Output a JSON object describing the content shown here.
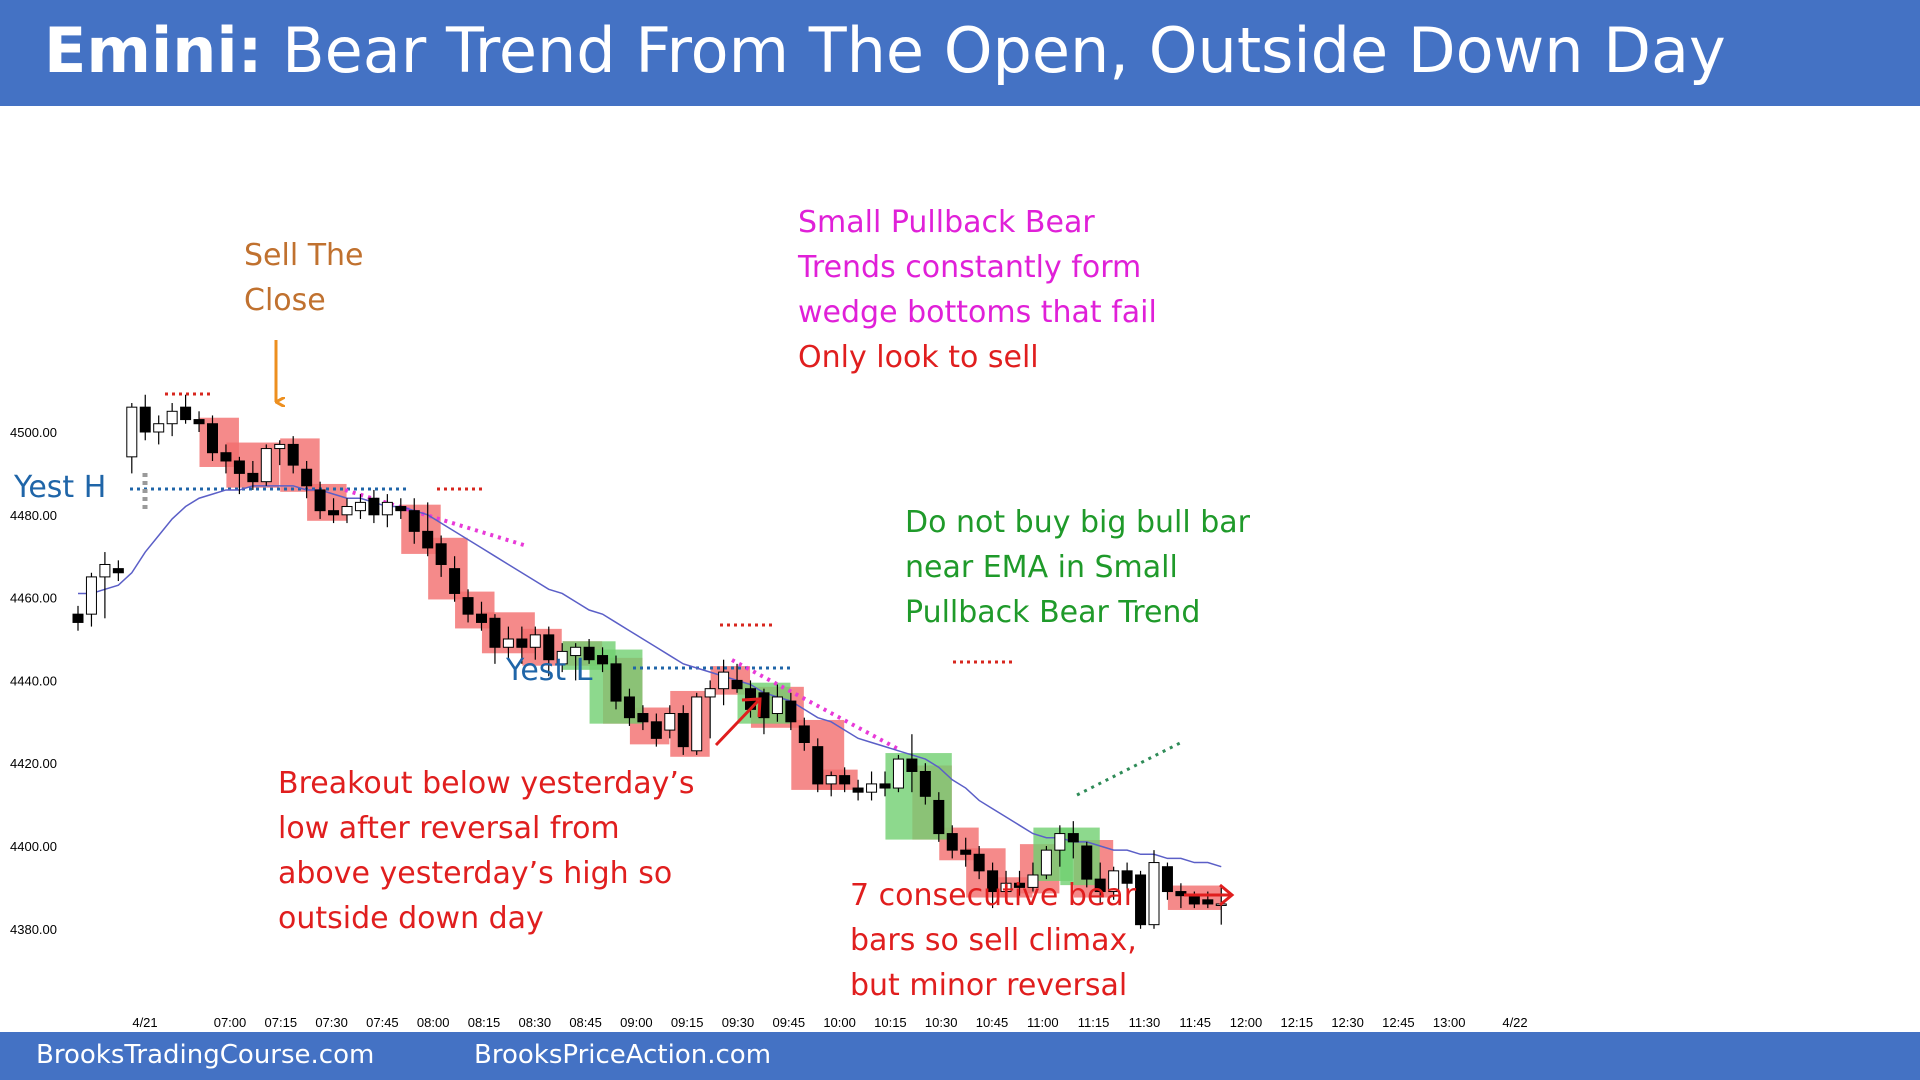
{
  "title": {
    "bold": "Emini:",
    "rest": " Bear Trend From The Open, Outside Down Day"
  },
  "footer": {
    "left": "BrooksTradingCourse.com",
    "right": "BrooksPriceAction.com"
  },
  "colors": {
    "banner": "#4472c4",
    "bear_highlight": "#f26d6d",
    "bull_highlight": "#70d070",
    "ema": "#5b5fc7"
  },
  "chart_data": {
    "type": "candlestick",
    "ylim": [
      4375,
      4510
    ],
    "y_ticks": [
      "4500.00",
      "4480.00",
      "4460.00",
      "4440.00",
      "4420.00",
      "4400.00",
      "4380.00"
    ],
    "y_tick_values": [
      4500,
      4480,
      4460,
      4440,
      4420,
      4400,
      4380
    ],
    "x_ticks": [
      "4/21",
      "07:00",
      "07:15",
      "07:30",
      "07:45",
      "08:00",
      "08:15",
      "08:30",
      "08:45",
      "09:00",
      "09:15",
      "09:30",
      "09:45",
      "10:00",
      "10:15",
      "10:30",
      "10:45",
      "11:00",
      "11:15",
      "11:30",
      "11:45",
      "12:00",
      "12:15",
      "12:30",
      "12:45",
      "13:00",
      "4/22"
    ],
    "candles": [
      {
        "o": 4456,
        "h": 4458,
        "l": 4452,
        "c": 4454
      },
      {
        "o": 4456,
        "h": 4466,
        "l": 4453,
        "c": 4465
      },
      {
        "o": 4465,
        "h": 4471,
        "l": 4455,
        "c": 4468
      },
      {
        "o": 4467,
        "h": 4469,
        "l": 4464,
        "c": 4466
      },
      {
        "o": 4494,
        "h": 4507,
        "l": 4490,
        "c": 4506
      },
      {
        "o": 4506,
        "h": 4509,
        "l": 4498,
        "c": 4500
      },
      {
        "o": 4500,
        "h": 4504,
        "l": 4497,
        "c": 4502
      },
      {
        "o": 4502,
        "h": 4507,
        "l": 4499,
        "c": 4505
      },
      {
        "o": 4506,
        "h": 4509,
        "l": 4502,
        "c": 4503
      },
      {
        "o": 4503,
        "h": 4505,
        "l": 4500,
        "c": 4502
      },
      {
        "o": 4502,
        "h": 4504,
        "l": 4493,
        "c": 4495
      },
      {
        "o": 4495,
        "h": 4497,
        "l": 4490,
        "c": 4493
      },
      {
        "o": 4493,
        "h": 4494,
        "l": 4485,
        "c": 4490
      },
      {
        "o": 4490,
        "h": 4493,
        "l": 4486,
        "c": 4488
      },
      {
        "o": 4488,
        "h": 4497,
        "l": 4487,
        "c": 4496
      },
      {
        "o": 4496,
        "h": 4498,
        "l": 4492,
        "c": 4497
      },
      {
        "o": 4497,
        "h": 4499,
        "l": 4490,
        "c": 4492
      },
      {
        "o": 4491,
        "h": 4493,
        "l": 4484,
        "c": 4487
      },
      {
        "o": 4486,
        "h": 4488,
        "l": 4479,
        "c": 4481
      },
      {
        "o": 4481,
        "h": 4484,
        "l": 4478,
        "c": 4480
      },
      {
        "o": 4480,
        "h": 4484,
        "l": 4478,
        "c": 4482
      },
      {
        "o": 4481,
        "h": 4485,
        "l": 4479,
        "c": 4483
      },
      {
        "o": 4484,
        "h": 4486,
        "l": 4478,
        "c": 4480
      },
      {
        "o": 4480,
        "h": 4485,
        "l": 4477,
        "c": 4483
      },
      {
        "o": 4482,
        "h": 4484,
        "l": 4479,
        "c": 4481
      },
      {
        "o": 4481,
        "h": 4484,
        "l": 4473,
        "c": 4476
      },
      {
        "o": 4476,
        "h": 4483,
        "l": 4470,
        "c": 4472
      },
      {
        "o": 4473,
        "h": 4475,
        "l": 4465,
        "c": 4468
      },
      {
        "o": 4467,
        "h": 4470,
        "l": 4459,
        "c": 4461
      },
      {
        "o": 4460,
        "h": 4462,
        "l": 4454,
        "c": 4456
      },
      {
        "o": 4456,
        "h": 4459,
        "l": 4452,
        "c": 4454
      },
      {
        "o": 4455,
        "h": 4456,
        "l": 4444,
        "c": 4448
      },
      {
        "o": 4448,
        "h": 4453,
        "l": 4445,
        "c": 4450
      },
      {
        "o": 4450,
        "h": 4453,
        "l": 4444,
        "c": 4448
      },
      {
        "o": 4448,
        "h": 4453,
        "l": 4445,
        "c": 4451
      },
      {
        "o": 4451,
        "h": 4453,
        "l": 4441,
        "c": 4445
      },
      {
        "o": 4444,
        "h": 4449,
        "l": 4442,
        "c": 4447
      },
      {
        "o": 4446,
        "h": 4449,
        "l": 4440,
        "c": 4448
      },
      {
        "o": 4448,
        "h": 4450,
        "l": 4444,
        "c": 4445
      },
      {
        "o": 4446,
        "h": 4448,
        "l": 4442,
        "c": 4444
      },
      {
        "o": 4444,
        "h": 4446,
        "l": 4433,
        "c": 4435
      },
      {
        "o": 4436,
        "h": 4438,
        "l": 4429,
        "c": 4431
      },
      {
        "o": 4432,
        "h": 4434,
        "l": 4428,
        "c": 4430
      },
      {
        "o": 4430,
        "h": 4432,
        "l": 4424,
        "c": 4426
      },
      {
        "o": 4428,
        "h": 4434,
        "l": 4426,
        "c": 4432
      },
      {
        "o": 4432,
        "h": 4434,
        "l": 4422,
        "c": 4424
      },
      {
        "o": 4423,
        "h": 4437,
        "l": 4422,
        "c": 4436
      },
      {
        "o": 4436,
        "h": 4440,
        "l": 4426,
        "c": 4438
      },
      {
        "o": 4438,
        "h": 4445,
        "l": 4434,
        "c": 4442
      },
      {
        "o": 4440,
        "h": 4444,
        "l": 4437,
        "c": 4438
      },
      {
        "o": 4438,
        "h": 4440,
        "l": 4431,
        "c": 4433
      },
      {
        "o": 4437,
        "h": 4438,
        "l": 4427,
        "c": 4431
      },
      {
        "o": 4432,
        "h": 4439,
        "l": 4430,
        "c": 4436
      },
      {
        "o": 4435,
        "h": 4437,
        "l": 4428,
        "c": 4430
      },
      {
        "o": 4429,
        "h": 4431,
        "l": 4423,
        "c": 4425
      },
      {
        "o": 4424,
        "h": 4426,
        "l": 4413,
        "c": 4415
      },
      {
        "o": 4415,
        "h": 4418,
        "l": 4412,
        "c": 4417
      },
      {
        "o": 4417,
        "h": 4419,
        "l": 4413,
        "c": 4415
      },
      {
        "o": 4414,
        "h": 4416,
        "l": 4411,
        "c": 4413
      },
      {
        "o": 4413,
        "h": 4418,
        "l": 4411,
        "c": 4415
      },
      {
        "o": 4415,
        "h": 4418,
        "l": 4412,
        "c": 4414
      },
      {
        "o": 4414,
        "h": 4422,
        "l": 4413,
        "c": 4421
      },
      {
        "o": 4421,
        "h": 4427,
        "l": 4413,
        "c": 4418
      },
      {
        "o": 4418,
        "h": 4420,
        "l": 4410,
        "c": 4412
      },
      {
        "o": 4411,
        "h": 4413,
        "l": 4401,
        "c": 4403
      },
      {
        "o": 4403,
        "h": 4405,
        "l": 4397,
        "c": 4399
      },
      {
        "o": 4399,
        "h": 4402,
        "l": 4395,
        "c": 4398
      },
      {
        "o": 4398,
        "h": 4400,
        "l": 4392,
        "c": 4394
      },
      {
        "o": 4394,
        "h": 4396,
        "l": 4385,
        "c": 4389
      },
      {
        "o": 4389,
        "h": 4394,
        "l": 4387,
        "c": 4391
      },
      {
        "o": 4391,
        "h": 4394,
        "l": 4388,
        "c": 4390
      },
      {
        "o": 4390,
        "h": 4396,
        "l": 4389,
        "c": 4393
      },
      {
        "o": 4393,
        "h": 4400,
        "l": 4392,
        "c": 4399
      },
      {
        "o": 4399,
        "h": 4405,
        "l": 4395,
        "c": 4403
      },
      {
        "o": 4403,
        "h": 4406,
        "l": 4397,
        "c": 4401
      },
      {
        "o": 4400,
        "h": 4401,
        "l": 4390,
        "c": 4392
      },
      {
        "o": 4392,
        "h": 4396,
        "l": 4386,
        "c": 4389
      },
      {
        "o": 4389,
        "h": 4395,
        "l": 4387,
        "c": 4394
      },
      {
        "o": 4394,
        "h": 4396,
        "l": 4388,
        "c": 4391
      },
      {
        "o": 4393,
        "h": 4394,
        "l": 4380,
        "c": 4381
      },
      {
        "o": 4381,
        "h": 4399,
        "l": 4380,
        "c": 4396
      },
      {
        "o": 4395,
        "h": 4396,
        "l": 4387,
        "c": 4389
      },
      {
        "o": 4389,
        "h": 4391,
        "l": 4385,
        "c": 4388
      },
      {
        "o": 4388,
        "h": 4389,
        "l": 4385,
        "c": 4386
      },
      {
        "o": 4387,
        "h": 4389,
        "l": 4385,
        "c": 4386
      },
      {
        "o": 4386,
        "h": 4390,
        "l": 4381,
        "c": 4386
      }
    ],
    "ema": [
      4461,
      4461,
      4462,
      4463,
      4466,
      4471,
      4475,
      4479,
      4482,
      4484,
      4485,
      4486,
      4486,
      4487,
      4487,
      4487,
      4487,
      4486,
      4486,
      4485,
      4484,
      4484,
      4483,
      4482,
      4482,
      4481,
      4480,
      4478,
      4476,
      4474,
      4472,
      4470,
      4468,
      4466,
      4464,
      4462,
      4461,
      4459,
      4457,
      4456,
      4454,
      4452,
      4450,
      4448,
      4446,
      4444,
      4443,
      4442,
      4441,
      4440,
      4439,
      4437,
      4436,
      4435,
      4433,
      4431,
      4430,
      4428,
      4426,
      4425,
      4424,
      4423,
      4422,
      4421,
      4419,
      4416,
      4414,
      4411,
      4409,
      4407,
      4405,
      4403,
      4402,
      4402,
      4401,
      4401,
      4400,
      4399,
      4399,
      4398,
      4398,
      4397,
      4397,
      4396,
      4396,
      4395
    ],
    "annotations": {
      "yest_h_label": "Yest H",
      "yest_l_label": "Yest L",
      "yest_h_value": 4485,
      "yest_l_value": 4443,
      "sell_the_close": [
        "Sell The",
        "Close"
      ],
      "small_pullback": [
        "Small Pullback Bear",
        "Trends constantly form",
        "wedge bottoms that fail"
      ],
      "only_sell": "Only look to sell",
      "do_not_buy": [
        "Do not buy big bull bar",
        "near EMA in Small",
        "Pullback Bear Trend"
      ],
      "breakout": [
        "Breakout below yesterday’s",
        "low after reversal from",
        "above yesterday’s high so",
        "outside down day"
      ],
      "seven_bars": [
        "7 consecutive bear",
        "bars so sell climax,",
        "but minor reversal"
      ]
    }
  }
}
